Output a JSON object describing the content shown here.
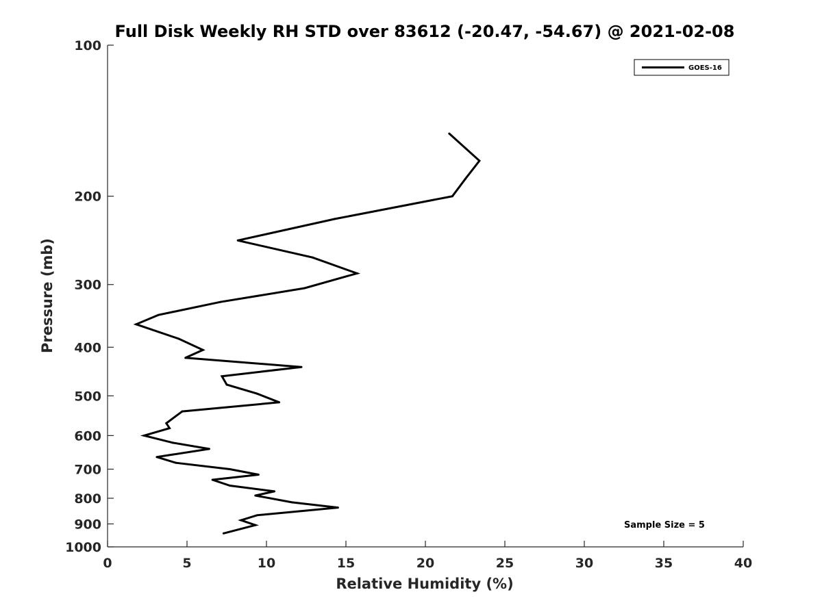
{
  "chart_data": {
    "type": "line",
    "title": "Full Disk Weekly RH STD over 83612 (-20.47, -54.67) @ 2021-02-08",
    "xlabel": "Relative Humidity (%)",
    "ylabel": "Pressure (mb)",
    "xlim": [
      0,
      40
    ],
    "ylim": [
      100,
      1000
    ],
    "yscale": "log",
    "y_reversed": true,
    "grid": false,
    "x_ticks": [
      0,
      5,
      10,
      15,
      20,
      25,
      30,
      35,
      40
    ],
    "y_ticks": [
      100,
      200,
      300,
      400,
      500,
      600,
      700,
      800,
      900,
      1000
    ],
    "legend_position": "top-right",
    "series": [
      {
        "name": "GOES-16",
        "color": "#000000",
        "points": [
          {
            "x": 21.5,
            "y": 150
          },
          {
            "x": 23.4,
            "y": 170
          },
          {
            "x": 22.5,
            "y": 185
          },
          {
            "x": 21.7,
            "y": 200
          },
          {
            "x": 14.3,
            "y": 222
          },
          {
            "x": 8.2,
            "y": 245
          },
          {
            "x": 12.9,
            "y": 265
          },
          {
            "x": 15.7,
            "y": 285
          },
          {
            "x": 12.4,
            "y": 305
          },
          {
            "x": 7.1,
            "y": 325
          },
          {
            "x": 3.2,
            "y": 345
          },
          {
            "x": 1.8,
            "y": 360
          },
          {
            "x": 4.5,
            "y": 385
          },
          {
            "x": 6.0,
            "y": 405
          },
          {
            "x": 4.9,
            "y": 420
          },
          {
            "x": 12.2,
            "y": 438
          },
          {
            "x": 7.2,
            "y": 457
          },
          {
            "x": 7.5,
            "y": 475
          },
          {
            "x": 9.4,
            "y": 495
          },
          {
            "x": 10.8,
            "y": 515
          },
          {
            "x": 4.7,
            "y": 537
          },
          {
            "x": 3.7,
            "y": 567
          },
          {
            "x": 3.9,
            "y": 580
          },
          {
            "x": 2.3,
            "y": 600
          },
          {
            "x": 4.1,
            "y": 620
          },
          {
            "x": 6.4,
            "y": 638
          },
          {
            "x": 3.1,
            "y": 662
          },
          {
            "x": 4.3,
            "y": 680
          },
          {
            "x": 7.7,
            "y": 700
          },
          {
            "x": 9.5,
            "y": 718
          },
          {
            "x": 6.6,
            "y": 735
          },
          {
            "x": 7.7,
            "y": 755
          },
          {
            "x": 10.5,
            "y": 775
          },
          {
            "x": 9.3,
            "y": 790
          },
          {
            "x": 11.6,
            "y": 815
          },
          {
            "x": 14.5,
            "y": 835
          },
          {
            "x": 9.4,
            "y": 865
          },
          {
            "x": 8.4,
            "y": 885
          },
          {
            "x": 9.3,
            "y": 905
          },
          {
            "x": 7.3,
            "y": 940
          }
        ]
      }
    ],
    "annotation": "Sample Size = 5"
  }
}
